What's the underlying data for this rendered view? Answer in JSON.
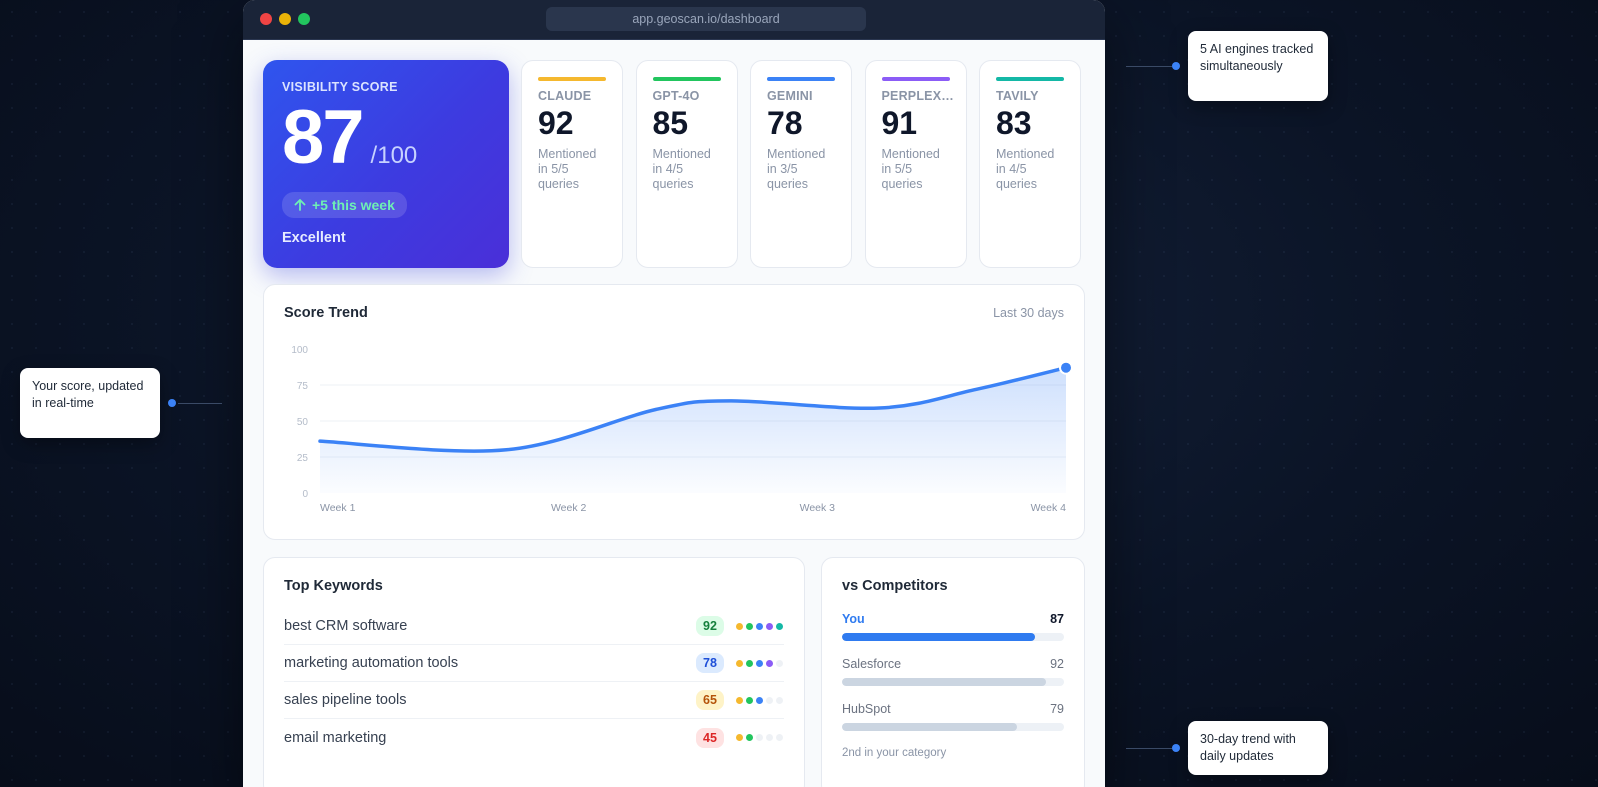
{
  "browser": {
    "url": "app.geoscan.io/dashboard",
    "dot_colors": [
      "#ef4444",
      "#eab308",
      "#22c55e"
    ]
  },
  "score": {
    "label": "VISIBILITY SCORE",
    "value": "87",
    "max": "/100",
    "delta_icon": "arrow-up-icon",
    "delta": "+5 this week",
    "rating": "Excellent"
  },
  "engines": [
    {
      "name": "CLAUDE",
      "score": "92",
      "desc": "Mentioned in 5/5 queries",
      "color": "#f5b82e"
    },
    {
      "name": "GPT-4O",
      "score": "85",
      "desc": "Mentioned in 4/5 queries",
      "color": "#22c55e"
    },
    {
      "name": "GEMINI",
      "score": "78",
      "desc": "Mentioned in 3/5 queries",
      "color": "#3b82f6"
    },
    {
      "name": "PERPLEX…",
      "score": "91",
      "desc": "Mentioned in 5/5 queries",
      "color": "#8b5cf6"
    },
    {
      "name": "TAVILY",
      "score": "83",
      "desc": "Mentioned in 4/5 queries",
      "color": "#14b8a6"
    }
  ],
  "trend": {
    "title": "Score Trend",
    "range": "Last 30 days",
    "chart_data": {
      "type": "area",
      "x": [
        "Week 1",
        "Week 2",
        "Week 3",
        "Week 4"
      ],
      "y_ticks": [
        "100",
        "75",
        "50",
        "25",
        "0"
      ],
      "ylim": [
        0,
        100
      ],
      "points": [
        [
          0,
          36
        ],
        [
          0.25,
          30
        ],
        [
          0.45,
          58
        ],
        [
          0.55,
          64
        ],
        [
          0.75,
          59
        ],
        [
          0.88,
          72
        ],
        [
          1.0,
          87
        ]
      ],
      "grid": true,
      "color": "#3b82f6"
    }
  },
  "keywords": {
    "title": "Top Keywords",
    "items": [
      {
        "text": "best CRM software",
        "score": "92",
        "badge_bg": "#dcfce7",
        "badge_fg": "#15803d",
        "dots": 5
      },
      {
        "text": "marketing automation tools",
        "score": "78",
        "badge_bg": "#dbeafe",
        "badge_fg": "#1d4ed8",
        "dots": 4
      },
      {
        "text": "sales pipeline tools",
        "score": "65",
        "badge_bg": "#fef3c7",
        "badge_fg": "#b45309",
        "dots": 3
      },
      {
        "text": "email marketing",
        "score": "45",
        "badge_bg": "#fee2e2",
        "badge_fg": "#dc2626",
        "dots": 2
      }
    ],
    "dot_colors": [
      "#f5b82e",
      "#22c55e",
      "#3b82f6",
      "#8b5cf6",
      "#14b8a6"
    ]
  },
  "competitors": {
    "title": "vs Competitors",
    "items": [
      {
        "name": "You",
        "score": "87",
        "fill": 0.87,
        "color": "#2f7bf0",
        "highlight": true
      },
      {
        "name": "Salesforce",
        "score": "92",
        "fill": 0.92,
        "color": "#cbd5e1",
        "highlight": false
      },
      {
        "name": "HubSpot",
        "score": "79",
        "fill": 0.79,
        "color": "#cbd5e1",
        "highlight": false
      }
    ],
    "footer": "2nd in your category"
  },
  "callouts": {
    "top_right": "5 AI engines tracked simultaneously",
    "left": "Your score, updated in real-time",
    "bottom_right": "30-day trend with daily updates"
  }
}
